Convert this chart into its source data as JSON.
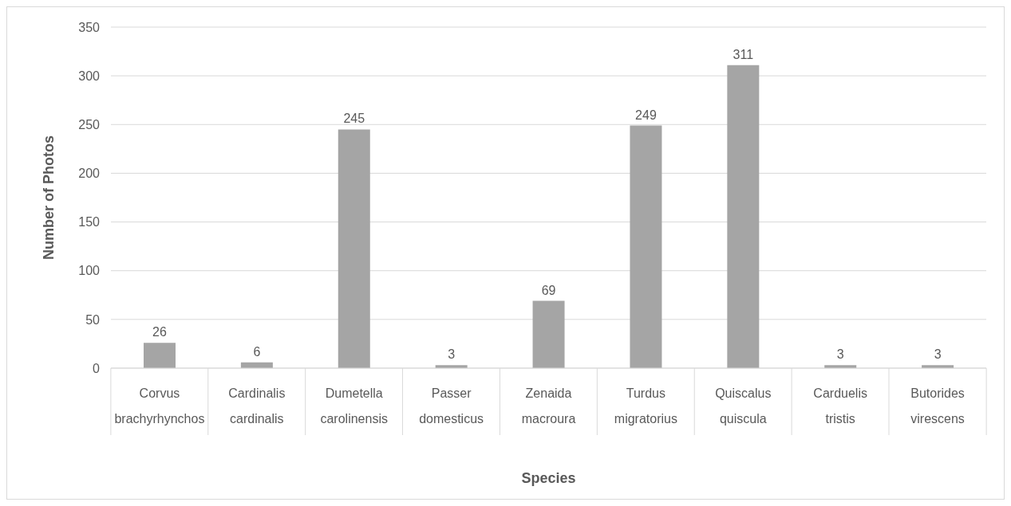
{
  "chart_data": {
    "type": "bar",
    "xlabel": "Species",
    "ylabel": "Number of Photos",
    "categories": [
      "Corvus brachyrhynchos",
      "Cardinalis cardinalis",
      "Dumetella carolinensis",
      "Passer domesticus",
      "Zenaida macroura",
      "Turdus migratorius",
      "Quiscalus quiscula",
      "Carduelis tristis",
      "Butorides virescens"
    ],
    "values": [
      26,
      6,
      245,
      3,
      69,
      249,
      311,
      3,
      3
    ],
    "color": "#a5a5a5",
    "ylim": [
      0,
      350
    ],
    "yticks": [
      0,
      50,
      100,
      150,
      200,
      250,
      300,
      350
    ],
    "grid": "y",
    "data_labels": true
  }
}
